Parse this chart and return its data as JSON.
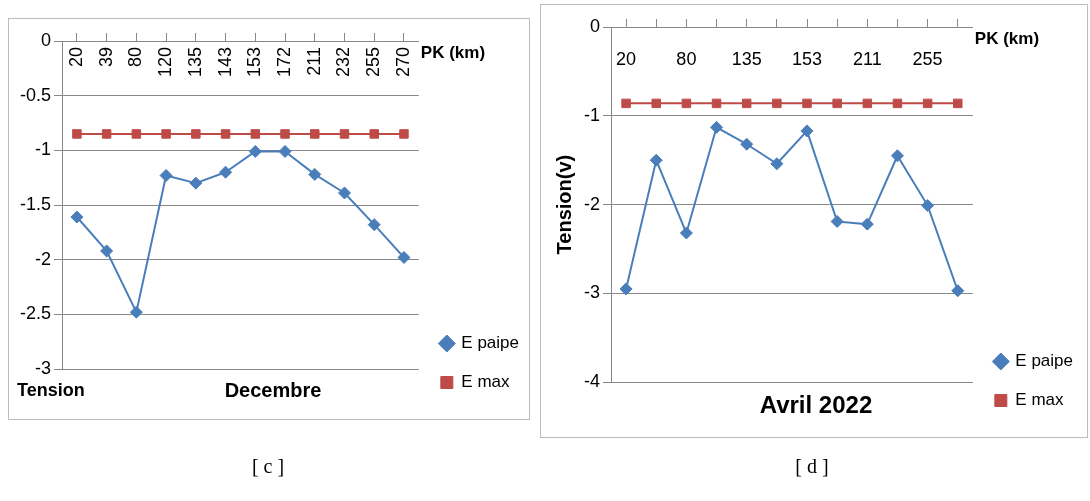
{
  "chart_data": [
    {
      "type": "line",
      "title": "Decembre",
      "xlabel": "PK (km)",
      "ylabel": "Tension",
      "categories": [
        "20",
        "39",
        "80",
        "120",
        "135",
        "143",
        "153",
        "172",
        "211",
        "232",
        "255",
        "270"
      ],
      "series": [
        {
          "name": "E paipe",
          "color": "#4a7ebb",
          "marker": "diamond",
          "values": [
            -1.61,
            -1.92,
            -2.48,
            -1.23,
            -1.3,
            -1.2,
            -1.01,
            -1.01,
            -1.22,
            -1.39,
            -1.68,
            -1.98
          ]
        },
        {
          "name": "E max",
          "color": "#be4b48",
          "marker": "square",
          "values": [
            -0.85,
            -0.85,
            -0.85,
            -0.85,
            -0.85,
            -0.85,
            -0.85,
            -0.85,
            -0.85,
            -0.85,
            -0.85,
            -0.85
          ]
        }
      ],
      "ylim": [
        -3,
        0
      ],
      "yticks": [
        -3,
        -2.5,
        -2,
        -1.5,
        -1,
        -0.5,
        0
      ],
      "grid": "y",
      "legend": "bottom right",
      "line_style": "solid",
      "annotations": [
        "[ c ]"
      ]
    },
    {
      "type": "line",
      "title": "Avril 2022",
      "xlabel": "PK (km)",
      "ylabel": "Tension(v)",
      "categories": [
        "20",
        null,
        "80",
        null,
        "135",
        null,
        "153",
        null,
        "211",
        null,
        "255",
        null
      ],
      "series": [
        {
          "name": "E paipe",
          "color": "#4a7ebb",
          "marker": "diamond",
          "values": [
            -2.95,
            -1.5,
            -2.32,
            -1.13,
            -1.32,
            -1.54,
            -1.17,
            -2.19,
            -2.22,
            -1.45,
            -2.01,
            -2.97
          ]
        },
        {
          "name": "E max",
          "color": "#be4b48",
          "marker": "square",
          "values": [
            -0.86,
            -0.86,
            -0.86,
            -0.86,
            -0.86,
            -0.86,
            -0.86,
            -0.86,
            -0.86,
            -0.86,
            -0.86,
            -0.86
          ]
        }
      ],
      "ylim": [
        -4,
        0
      ],
      "yticks": [
        -4,
        -3,
        -2,
        -1,
        0
      ],
      "grid": "y",
      "legend": "bottom right",
      "line_style": "solid",
      "annotations": [
        "[ d ]"
      ]
    }
  ]
}
